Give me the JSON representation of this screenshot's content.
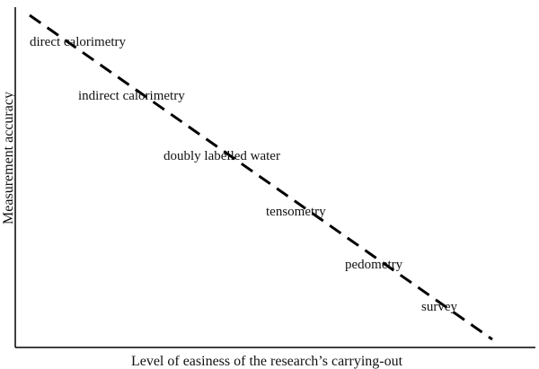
{
  "axes": {
    "x_title": "Level of easiness of the research’s carrying-out",
    "y_title": "Measurement accuracy"
  },
  "methods": [
    "direct calorimetry",
    "indirect calorimetry",
    "doubly labelled water",
    "tensometry",
    "pedometry",
    "survey"
  ]
}
